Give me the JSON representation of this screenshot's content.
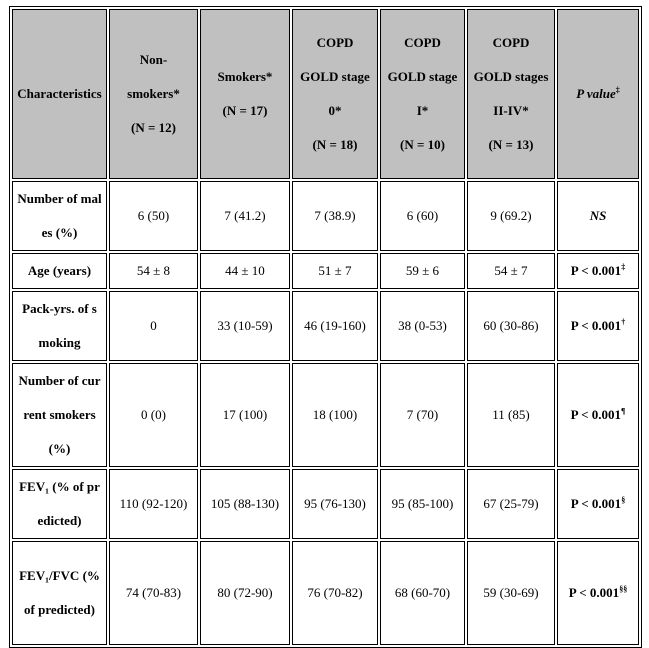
{
  "table": {
    "header": [
      {
        "name": "Characteristics"
      },
      {
        "name": "Non-smokers*",
        "n": "(N = 12)"
      },
      {
        "name": "Smokers*",
        "n": "(N = 17)"
      },
      {
        "name": "COPD GOLD stage 0*",
        "n": "(N = 18)"
      },
      {
        "name": "COPD GOLD stage I*",
        "n": "(N = 10)"
      },
      {
        "name": "COPD GOLD stages II-IV*",
        "n": "(N = 13)"
      },
      {
        "name": "P value",
        "sup": "‡"
      }
    ],
    "rows": [
      {
        "label": "Number of males (%)",
        "values": [
          "6 (50)",
          "7 (41.2)",
          "7 (38.9)",
          "6 (60)",
          "9 (69.2)"
        ],
        "p": {
          "text": "NS"
        }
      },
      {
        "label": "Age (years)",
        "values": [
          "54 ± 8",
          "44 ± 10",
          "51 ± 7",
          "59 ± 6",
          "54 ± 7"
        ],
        "p": {
          "text": "P < 0.001",
          "sup": "‡"
        }
      },
      {
        "label": "Pack-yrs. of smoking",
        "values": [
          "0",
          "33 (10-59)",
          "46 (19-160)",
          "38 (0-53)",
          "60 (30-86)"
        ],
        "p": {
          "text": "P < 0.001",
          "sup": "†"
        }
      },
      {
        "label": "Number of current smokers (%)",
        "values": [
          "0 (0)",
          "17 (100)",
          "18 (100)",
          "7 (70)",
          "11 (85)"
        ],
        "p": {
          "text": "P < 0.001",
          "sup": "¶"
        }
      },
      {
        "label": "FEV₁ (% of predicted)",
        "values": [
          "110 (92-120)",
          "105 (88-130)",
          "95 (76-130)",
          "95 (85-100)",
          "67 (25-79)"
        ],
        "p": {
          "text": "P < 0.001",
          "sup": "§"
        }
      },
      {
        "label": "FEV₁/FVC (% of predicted)",
        "values": [
          "74 (70-83)",
          "80 (72-90)",
          "76 (70-82)",
          "68 (60-70)",
          "59 (30-69)"
        ],
        "p": {
          "text": "P < 0.001",
          "sup": "§§"
        }
      }
    ]
  }
}
